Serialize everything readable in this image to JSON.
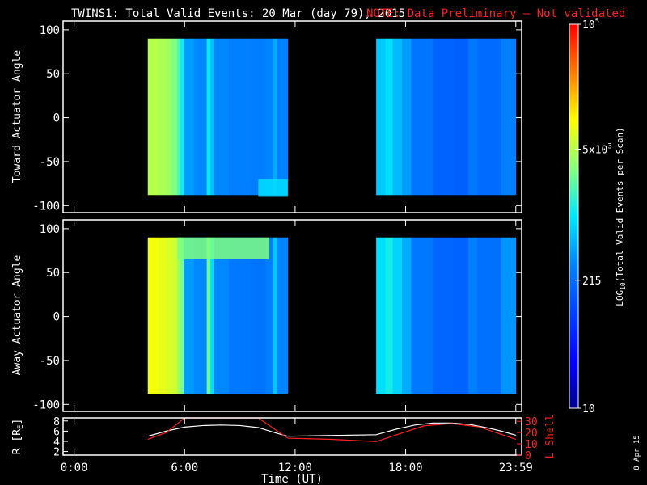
{
  "title": {
    "main": "TWINS1: Total Valid Events: 20 Mar (day  79), 2015",
    "note": "NOTE: Data Preliminary — Not validated",
    "note_color": "#ff2020"
  },
  "panels": [
    {
      "id": "toward",
      "ylabel": "Toward Actuator Angle",
      "yticks": [
        100,
        50,
        0,
        -50,
        -100
      ],
      "ylim": [
        -108,
        110
      ]
    },
    {
      "id": "away",
      "ylabel": "Away Actuator Angle",
      "yticks": [
        100,
        50,
        0,
        -50,
        -100
      ],
      "ylim": [
        -108,
        110
      ]
    }
  ],
  "xaxis": {
    "label": "Time (UT)",
    "ticks": [
      "0:00",
      "6:00",
      "12:00",
      "18:00",
      "23:59"
    ],
    "tick_hours": [
      0,
      6,
      12,
      18,
      23.983
    ],
    "xlim_hours": [
      -0.6,
      24.3
    ]
  },
  "colorbar": {
    "label": "LOG10(Total Valid Events per Scan)",
    "label_parts": {
      "pre": "LOG",
      "sub": "10",
      "post": "(Total Valid  Events per Scan)"
    },
    "scale": "log",
    "range": [
      10,
      100000
    ],
    "ticks": [
      {
        "value": 100000,
        "label": "10",
        "sup": "5"
      },
      {
        "value": 5000,
        "label": "5x10",
        "sup": "3"
      },
      {
        "value": 215,
        "label": "215",
        "sup": ""
      },
      {
        "value": 10,
        "label": "10",
        "sup": ""
      }
    ]
  },
  "bottom_panel": {
    "left_label": "R [R",
    "left_label_sub": "E",
    "left_label_end": "]",
    "left_ticks": [
      8,
      6,
      4,
      2
    ],
    "left_ylim": [
      1.3,
      8.6
    ],
    "right_label": "L Shell",
    "right_ticks": [
      30,
      20,
      10,
      0
    ],
    "right_ylim": [
      0,
      33
    ],
    "right_color": "#ff2020"
  },
  "date_stamp": "8 Apr 15",
  "chart_data": {
    "type": "heatmap",
    "x_unit": "hours UT",
    "y_unit": "actuator angle (deg)",
    "color_unit": "Total Valid Events per Scan",
    "y_extent": [
      -88,
      90
    ],
    "segments": [
      {
        "name": "segment-1",
        "t_start": 4.0,
        "t_end": 11.6,
        "columns": [
          {
            "t0": 4.0,
            "t1": 4.6,
            "toward": 5000,
            "away": 9000
          },
          {
            "t0": 4.6,
            "t1": 5.0,
            "toward": 4500,
            "away": 8000
          },
          {
            "t0": 5.0,
            "t1": 5.3,
            "toward": 4000,
            "away": 7000
          },
          {
            "t0": 5.3,
            "t1": 5.6,
            "toward": 3000,
            "away": 6500
          },
          {
            "t0": 5.6,
            "t1": 5.75,
            "toward": 2000,
            "away": 4000
          },
          {
            "t0": 5.75,
            "t1": 5.95,
            "toward": 1200,
            "away": 3000
          },
          {
            "t0": 5.95,
            "t1": 6.5,
            "toward": 420,
            "away": 420
          },
          {
            "t0": 6.5,
            "t1": 7.2,
            "toward": 330,
            "away": 330
          },
          {
            "t0": 7.2,
            "t1": 7.4,
            "toward": 1100,
            "away": 2500
          },
          {
            "t0": 7.4,
            "t1": 7.6,
            "toward": 650,
            "away": 900
          },
          {
            "t0": 7.6,
            "t1": 8.4,
            "toward": 330,
            "away": 330
          },
          {
            "t0": 8.4,
            "t1": 9.6,
            "toward": 300,
            "away": 260
          },
          {
            "t0": 9.6,
            "t1": 10.4,
            "toward": 290,
            "away": 240
          },
          {
            "t0": 10.4,
            "t1": 10.8,
            "toward": 320,
            "away": 300
          },
          {
            "t0": 10.8,
            "t1": 11.0,
            "toward": 500,
            "away": 700
          },
          {
            "t0": 11.0,
            "t1": 11.6,
            "toward": 310,
            "away": 320
          }
        ],
        "bands": [
          {
            "panel": "away",
            "t0": 5.6,
            "t1": 10.6,
            "a0": 65,
            "a1": 90,
            "value": 3000
          },
          {
            "panel": "toward",
            "t0": 10.0,
            "t1": 11.6,
            "a0": -90,
            "a1": -70,
            "value": 900
          }
        ]
      },
      {
        "name": "segment-2",
        "t_start": 16.4,
        "t_end": 23.983,
        "columns": [
          {
            "t0": 16.4,
            "t1": 16.9,
            "toward": 700,
            "away": 900
          },
          {
            "t0": 16.9,
            "t1": 17.3,
            "toward": 900,
            "away": 1200
          },
          {
            "t0": 17.3,
            "t1": 17.8,
            "toward": 600,
            "away": 800
          },
          {
            "t0": 17.8,
            "t1": 18.3,
            "toward": 420,
            "away": 500
          },
          {
            "t0": 18.3,
            "t1": 19.5,
            "toward": 250,
            "away": 260
          },
          {
            "t0": 19.5,
            "t1": 20.6,
            "toward": 180,
            "away": 190
          },
          {
            "t0": 20.6,
            "t1": 21.4,
            "toward": 170,
            "away": 180
          },
          {
            "t0": 21.4,
            "t1": 21.9,
            "toward": 260,
            "away": 300
          },
          {
            "t0": 21.9,
            "t1": 23.2,
            "toward": 210,
            "away": 230
          },
          {
            "t0": 23.2,
            "t1": 23.983,
            "toward": 300,
            "away": 380
          }
        ],
        "bands": []
      }
    ],
    "radial_distance": {
      "name": "R [RE]",
      "color": "#ffffff",
      "t": [
        4.0,
        5.0,
        6.0,
        7.0,
        8.0,
        9.0,
        10.0,
        11.0,
        11.6,
        16.4,
        17.5,
        18.5,
        19.5,
        20.5,
        21.5,
        22.5,
        23.2,
        23.983
      ],
      "r": [
        5.0,
        6.0,
        6.8,
        7.1,
        7.2,
        7.1,
        6.7,
        5.6,
        5.0,
        5.3,
        6.4,
        7.2,
        7.6,
        7.6,
        7.3,
        6.6,
        6.0,
        5.2
      ]
    },
    "l_shell": {
      "name": "L Shell",
      "color": "#ff2020",
      "t": [
        4.0,
        5.0,
        6.0,
        10.0,
        11.6,
        14.0,
        16.4,
        17.5,
        19.0,
        20.5,
        22.0,
        23.983
      ],
      "l": [
        14,
        20,
        33,
        33,
        15,
        14,
        12,
        18,
        26,
        28,
        25,
        14
      ]
    }
  }
}
